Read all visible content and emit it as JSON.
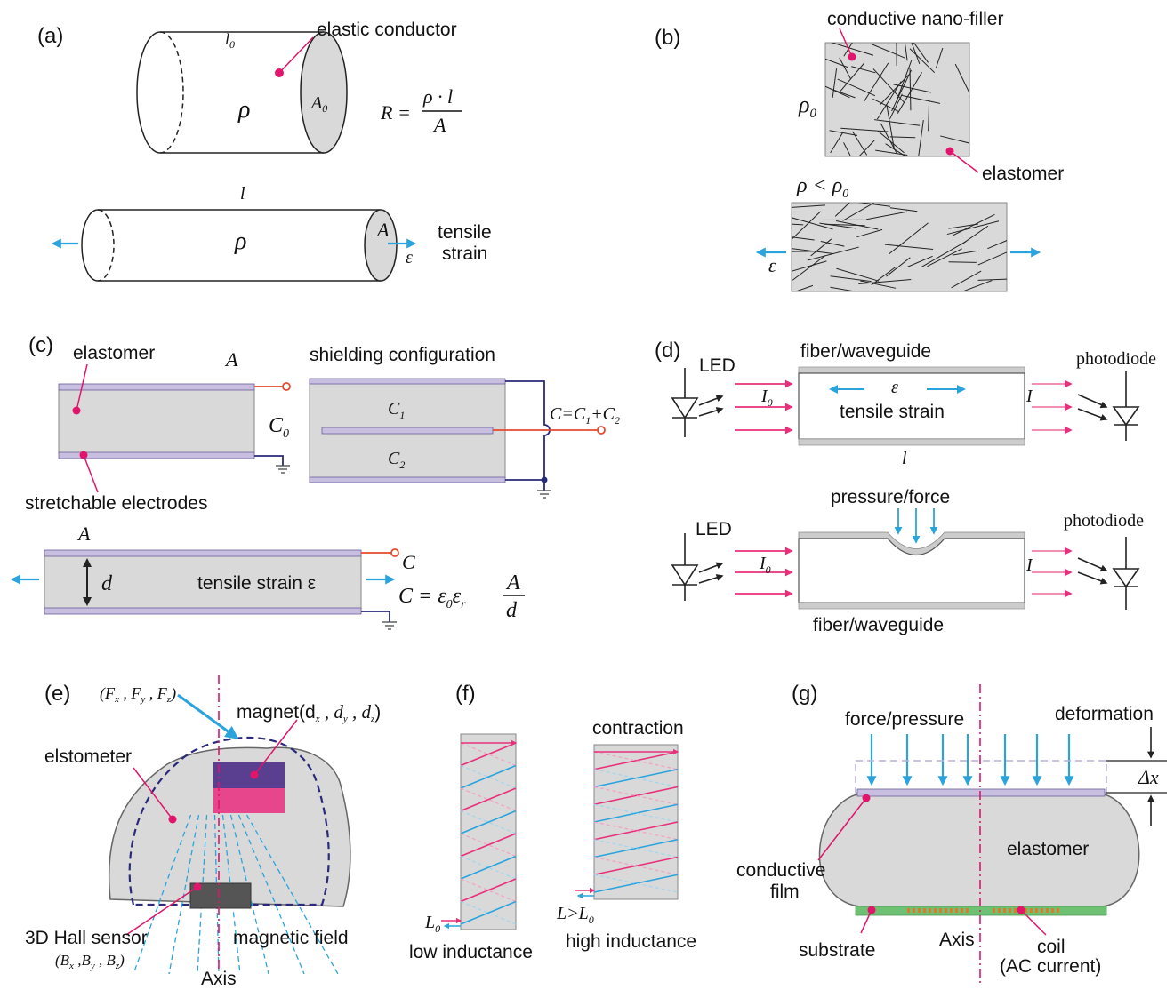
{
  "colors": {
    "gray_fill": "#d9d9d9",
    "blue_arrow": "#2ba4dd",
    "pink": "#e8307a",
    "magenta_dot": "#e0156b",
    "electrode": "#c8bfe0",
    "navy": "#2a2a7a",
    "dark_purple": "#5a3e8f",
    "substrate_green": "#6ec173",
    "coil_orange": "#e07a2a",
    "red_wire": "#e64a2e"
  },
  "panel_a": {
    "tag": "(a)",
    "l0": "l",
    "l0_sub": "0",
    "conductor_label": "elastic conductor",
    "rho": "ρ",
    "A0": "A",
    "A0_sub": "0",
    "formula_lhs": "R =",
    "formula_num": "ρ · l",
    "formula_den": "A",
    "l": "l",
    "rho2": "ρ",
    "A": "A",
    "eps": "ε",
    "tensile1": "tensile",
    "tensile2": "strain"
  },
  "panel_b": {
    "tag": "(b)",
    "filler_label": "conductive nano-filler",
    "rho0": "ρ",
    "rho0_sub": "0",
    "elastomer": "elastomer",
    "rho_lt": "ρ < ρ",
    "rho_lt_sub": "0",
    "eps": "ε"
  },
  "panel_c": {
    "tag": "(c)",
    "elastomer": "elastomer",
    "A_top": "A",
    "C0": "C",
    "C0_sub": "0",
    "electrodes": "stretchable electrodes",
    "shielding": "shielding configuration",
    "C1": "C",
    "C1_sub": "1",
    "C2": "C",
    "C2_sub": "2",
    "Csum_a": "C=C",
    "Csum_sub1": "1",
    "Csum_b": "+C",
    "Csum_sub2": "2",
    "A_bottom": "A",
    "d": "d",
    "tensile": "tensile strain ε",
    "C": "C",
    "formula_lhs": "C = ε",
    "formula_sub0": "0",
    "formula_eps": "ε",
    "formula_subr": "r",
    "formula_num": "A",
    "formula_den": "d"
  },
  "panel_d": {
    "tag": "(d)",
    "led1": "LED",
    "fiber1": "fiber/waveguide",
    "photodiode1": "photodiode",
    "I0": "I",
    "I0_sub": "0",
    "eps": "ε",
    "tensile": "tensile strain",
    "I": "I",
    "l": "l",
    "pressure": "pressure/force",
    "led2": "LED",
    "photodiode2": "photodiode",
    "I0b": "I",
    "I0b_sub": "0",
    "Ib": "I",
    "fiber2": "fiber/waveguide"
  },
  "panel_e": {
    "tag": "(e)",
    "force": "(F",
    "magnet": "magnet(d",
    "elstometer": "elstometer",
    "hall1": "3D Hall sensor",
    "hall2": "(B",
    "magfield": "magnetic field",
    "axis": "Axis"
  },
  "panel_f": {
    "tag": "(f)",
    "contraction": "contraction",
    "L0": "L",
    "L0_sub": "0",
    "Lgt": "L>L",
    "Lgt_sub": "0",
    "low": "low inductance",
    "high": "high inductance"
  },
  "panel_g": {
    "tag": "(g)",
    "force": "force/pressure",
    "deformation": "deformation",
    "dx": "Δx",
    "elastomer": "elastomer",
    "film1": "conductive",
    "film2": "film",
    "substrate": "substrate",
    "axis": "Axis",
    "coil1": "coil",
    "coil2": "(AC current)"
  }
}
